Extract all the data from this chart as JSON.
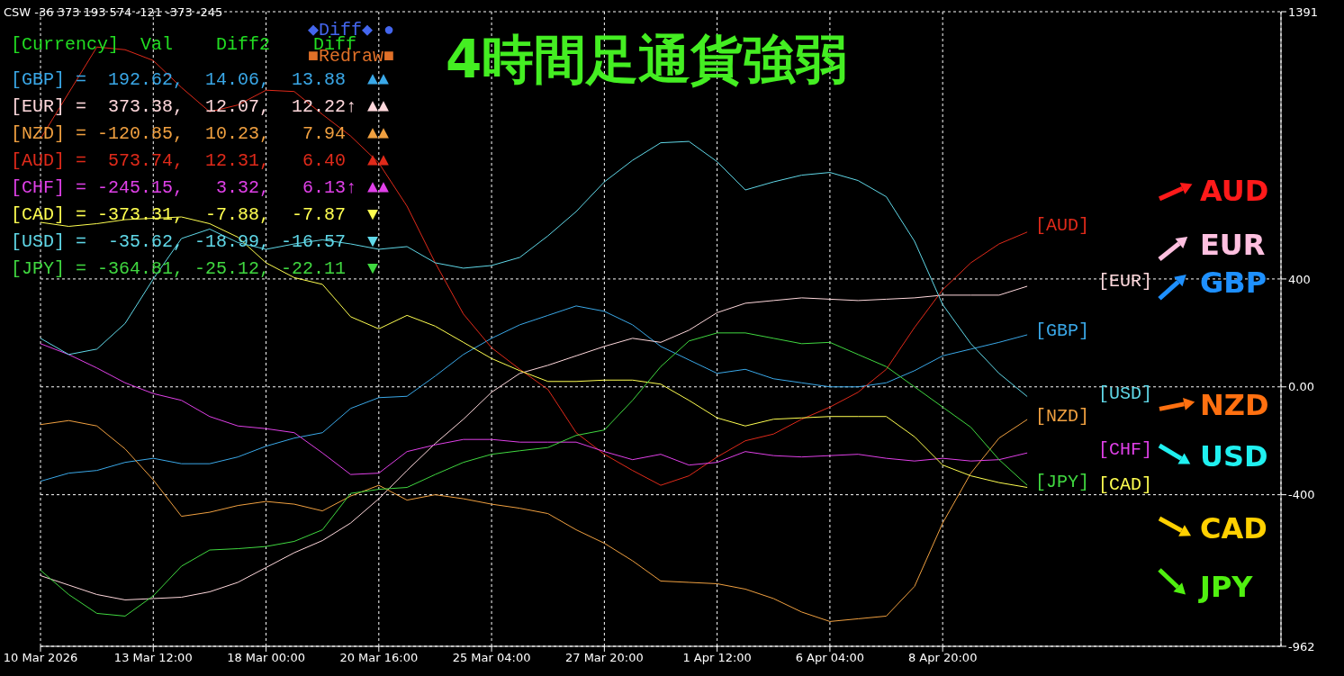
{
  "chart_data": {
    "type": "line",
    "title": "4時間足通貨強弱",
    "annotations": [
      "CSW -36 373 193 574 -121 -373 -245",
      "[Currency]  Val    Diff2    Diff",
      "[GBP] =  192.62,  14.06,  13.88  ▲▲",
      "[EUR] =  373.38,  12.07,  12.22↑ ▲▲",
      "[NZD] = -120.85,  10.23,   7.94  ▲▲",
      "[AUD] =  573.74,  12.31,   6.40  ▲▲",
      "[CHF] = -245.15,   3.32,   6.13↑ ▲▲",
      "[CAD] = -373.31,  -7.88,  -7.87  ▼",
      "[USD] =  -35.62, -18.99, -16.57  ▼",
      "[JPY] = -364.81, -25.12, -22.11  ▼",
      "◆Diff◆ ●",
      "■Redraw■",
      "AUD",
      "EUR",
      "GBP",
      "NZD",
      "USD",
      "CAD",
      "JPY"
    ],
    "categories": [
      "10 Mar 2026",
      null,
      null,
      null,
      "13 Mar 12:00",
      null,
      null,
      null,
      "18 Mar 00:00",
      null,
      null,
      null,
      "20 Mar 16:00",
      null,
      null,
      null,
      "25 Mar 04:00",
      null,
      null,
      null,
      "27 Mar 20:00",
      null,
      null,
      null,
      "1 Apr 12:00",
      null,
      null,
      null,
      "6 Apr 04:00",
      null,
      null,
      null,
      "8 Apr 20:00",
      null,
      null,
      null,
      null,
      null,
      null,
      null,
      null,
      null,
      null,
      null,
      null
    ],
    "ylim": [
      -962,
      1391
    ],
    "yticks": [
      -962,
      -400,
      {
        "value": 0,
        "label": "0.00"
      },
      400,
      1391
    ],
    "grid": true,
    "marker": "none",
    "line_style": "solid",
    "series": [
      {
        "name": "[GBP]",
        "color": "#3aa8e8",
        "values": [
          -350,
          -320,
          -310,
          -280,
          -265,
          -285,
          -285,
          -260,
          -220,
          -190,
          -170,
          -80,
          -40,
          -35,
          40,
          120,
          180,
          230,
          265,
          300,
          280,
          230,
          150,
          100,
          50,
          65,
          30,
          15,
          0,
          0,
          15,
          60,
          115,
          140,
          165,
          193,
          null,
          null,
          null,
          null,
          null,
          null,
          null,
          null,
          null
        ]
      },
      {
        "name": "[EUR]",
        "color": "#ffd8dc",
        "values": [
          -700,
          -735,
          -770,
          -790,
          -785,
          -780,
          -760,
          -725,
          -670,
          -615,
          -570,
          -505,
          -415,
          -310,
          -210,
          -120,
          -20,
          50,
          80,
          115,
          150,
          180,
          165,
          210,
          275,
          310,
          320,
          330,
          325,
          320,
          325,
          330,
          340,
          340,
          340,
          373,
          null,
          null,
          null,
          null,
          null,
          null,
          null,
          null,
          null
        ]
      },
      {
        "name": "[NZD]",
        "color": "#f0a040",
        "values": [
          -140,
          -125,
          -145,
          -230,
          -345,
          -480,
          -465,
          -440,
          -425,
          -435,
          -460,
          -405,
          -365,
          -420,
          -400,
          -415,
          -435,
          -450,
          -470,
          -530,
          -580,
          -645,
          -720,
          -725,
          -730,
          -750,
          -785,
          -835,
          -870,
          -860,
          -850,
          -740,
          -505,
          -320,
          -190,
          -121,
          null,
          null,
          null,
          null,
          null,
          null,
          null,
          null,
          null
        ]
      },
      {
        "name": "[AUD]",
        "color": "#e02a1a",
        "values": [
          920,
          1090,
          1260,
          1250,
          1210,
          1110,
          1020,
          1045,
          1100,
          1095,
          1010,
          930,
          830,
          670,
          460,
          270,
          145,
          65,
          -10,
          -170,
          -250,
          -310,
          -365,
          -330,
          -260,
          -200,
          -175,
          -120,
          -75,
          -20,
          65,
          220,
          360,
          460,
          530,
          574,
          null,
          null,
          null,
          null,
          null,
          null,
          null,
          null,
          null
        ]
      },
      {
        "name": "[CHF]",
        "color": "#e040e8",
        "values": [
          160,
          120,
          70,
          15,
          -25,
          -50,
          -110,
          -145,
          -155,
          -170,
          -245,
          -325,
          -320,
          -240,
          -215,
          -195,
          -195,
          -205,
          -205,
          -205,
          -240,
          -270,
          -250,
          -290,
          -280,
          -240,
          -255,
          -260,
          -255,
          -250,
          -265,
          -275,
          -265,
          -275,
          -270,
          -245,
          null,
          null,
          null,
          null,
          null,
          null,
          null,
          null,
          null
        ]
      },
      {
        "name": "[CAD]",
        "color": "#ffff50",
        "values": [
          610,
          595,
          605,
          620,
          625,
          630,
          605,
          555,
          460,
          405,
          380,
          260,
          215,
          265,
          225,
          165,
          105,
          60,
          20,
          20,
          25,
          25,
          10,
          -50,
          -115,
          -145,
          -120,
          -115,
          -110,
          -110,
          -110,
          -185,
          -290,
          -330,
          -355,
          -373,
          null,
          null,
          null,
          null,
          null,
          null,
          null,
          null,
          null
        ]
      },
      {
        "name": "[USD]",
        "color": "#60d8e8",
        "values": [
          180,
          120,
          140,
          235,
          400,
          550,
          585,
          535,
          510,
          530,
          545,
          530,
          510,
          520,
          460,
          440,
          450,
          480,
          560,
          650,
          760,
          840,
          905,
          910,
          835,
          730,
          760,
          785,
          795,
          765,
          705,
          540,
          305,
          160,
          50,
          -36,
          null,
          null,
          null,
          null,
          null,
          null,
          null,
          null,
          null
        ]
      },
      {
        "name": "[JPY]",
        "color": "#40d840",
        "values": [
          -680,
          -770,
          -840,
          -850,
          -775,
          -665,
          -605,
          -600,
          -592,
          -573,
          -530,
          -395,
          -380,
          -373,
          -325,
          -280,
          -250,
          -237,
          -225,
          -180,
          -160,
          -50,
          75,
          170,
          200,
          200,
          180,
          160,
          165,
          120,
          75,
          0,
          -75,
          -150,
          -270,
          -365,
          null,
          null,
          null,
          null,
          null,
          null,
          null,
          null,
          null
        ]
      }
    ]
  }
}
